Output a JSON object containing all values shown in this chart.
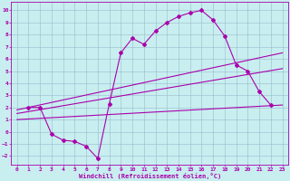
{
  "xlabel": "Windchill (Refroidissement éolien,°C)",
  "bg_color": "#c8eef0",
  "line_color": "#aa00aa",
  "grid_color": "#99bbcc",
  "xlim": [
    -0.5,
    23.5
  ],
  "ylim": [
    -2.7,
    10.7
  ],
  "xticks": [
    0,
    1,
    2,
    3,
    4,
    5,
    6,
    7,
    8,
    9,
    10,
    11,
    12,
    13,
    14,
    15,
    16,
    17,
    18,
    19,
    20,
    21,
    22,
    23
  ],
  "yticks": [
    -2,
    -1,
    0,
    1,
    2,
    3,
    4,
    5,
    6,
    7,
    8,
    9,
    10
  ],
  "curve_x": [
    1,
    2,
    3,
    4,
    5,
    6,
    7,
    8,
    9,
    10,
    11,
    12,
    13,
    14,
    15,
    16,
    17,
    18,
    19,
    20,
    21,
    22
  ],
  "curve_y": [
    2.0,
    2.0,
    -0.2,
    -0.7,
    -0.8,
    -1.2,
    -2.2,
    2.3,
    6.5,
    7.7,
    7.2,
    8.3,
    9.0,
    9.5,
    9.8,
    10.0,
    9.2,
    7.9,
    5.5,
    5.0,
    3.3,
    2.2
  ],
  "line1_x": [
    0,
    23
  ],
  "line1_y": [
    1.8,
    6.5
  ],
  "line2_x": [
    0,
    23
  ],
  "line2_y": [
    1.5,
    5.2
  ],
  "line3_x": [
    0,
    23
  ],
  "line3_y": [
    1.0,
    2.2
  ],
  "markersize": 2.0
}
